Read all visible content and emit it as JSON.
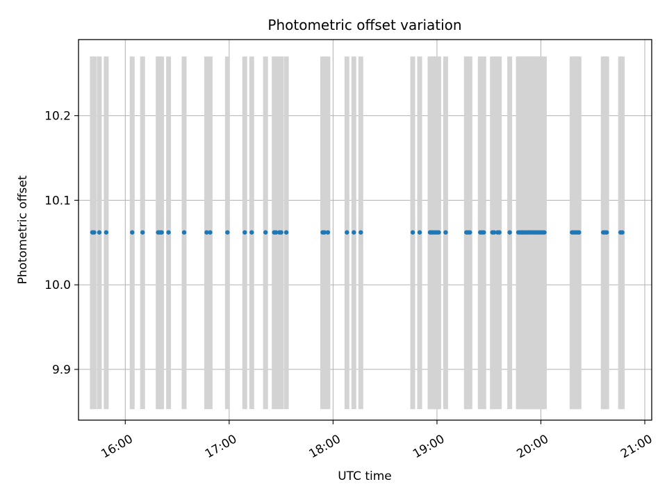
{
  "chart_data": {
    "type": "scatter",
    "title": "Photometric offset variation",
    "xlabel": "UTC time",
    "ylabel": "Photometric offset",
    "x_axis_type": "time",
    "xlim": [
      "15:33",
      "21:04"
    ],
    "ylim": [
      9.84,
      10.29
    ],
    "x_ticks": [
      "16:00",
      "17:00",
      "18:00",
      "19:00",
      "20:00",
      "21:00"
    ],
    "y_ticks": [
      9.9,
      10.0,
      10.1,
      10.2
    ],
    "y_tick_labels": [
      "9.9",
      "10.0",
      "10.1",
      "10.2"
    ],
    "grid": true,
    "error_bar_range": [
      9.853,
      10.27
    ],
    "colors": {
      "points": "#1f77b4",
      "error_bars": "#d3d3d3"
    },
    "series": [
      {
        "y_value": 10.062,
        "x": [
          "15:41",
          "15:42",
          "15:45",
          "15:49",
          "16:04",
          "16:10",
          "16:19",
          "16:20",
          "16:21",
          "16:25",
          "16:34",
          "16:47",
          "16:49",
          "16:59",
          "17:09",
          "17:13",
          "17:21",
          "17:26",
          "17:27",
          "17:29",
          "17:30",
          "17:33",
          "17:54",
          "17:55",
          "17:57",
          "18:08",
          "18:12",
          "18:16",
          "18:46",
          "18:50",
          "18:56",
          "18:57",
          "18:58",
          "18:59",
          "19:00",
          "19:01",
          "19:05",
          "19:17",
          "19:18",
          "19:19",
          "19:25",
          "19:26",
          "19:27",
          "19:32",
          "19:33",
          "19:35",
          "19:36",
          "19:42",
          "19:47",
          "19:48",
          "19:49",
          "19:50",
          "19:51",
          "19:52",
          "19:53",
          "19:54",
          "19:55",
          "19:56",
          "19:57",
          "19:58",
          "19:59",
          "20:00",
          "20:01",
          "20:02",
          "20:18",
          "20:19",
          "20:20",
          "20:21",
          "20:22",
          "20:36",
          "20:37",
          "20:38",
          "20:46",
          "20:47"
        ]
      }
    ]
  }
}
